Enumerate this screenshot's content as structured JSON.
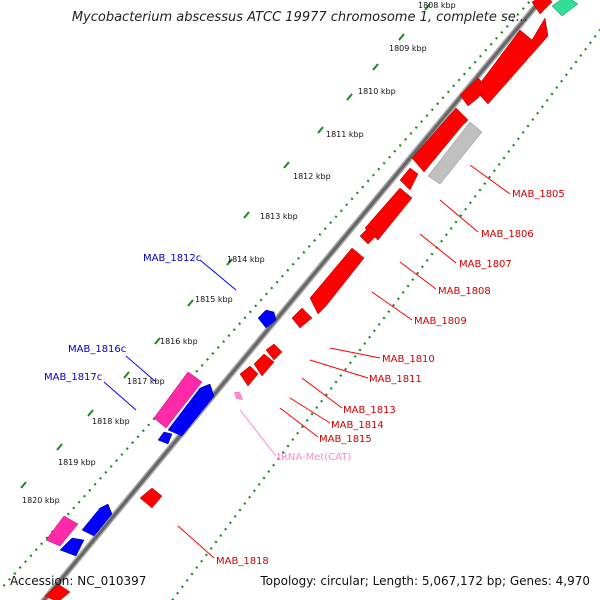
{
  "title": "Mycobacterium abscessus ATCC 19977 chromosome 1, complete se...",
  "footer": {
    "accession": "Accession: NC_010397",
    "summary": "Topology: circular; Length: 5,067,172 bp; Genes: 4,970"
  },
  "colors": {
    "forward_gene": "#ff0000",
    "reverse_gene": "#0000ff",
    "pseudogene": "#c0c0c0",
    "trna": "#ff88cc",
    "magenta_feature": "#ff2aa8",
    "teal_feature": "#33dd99",
    "tick_outer": "#1a8a1a",
    "backbone": "#808080"
  },
  "kbp_ticks": [
    "1808 kbp",
    "1809 kbp",
    "1810 kbp",
    "1811 kbp",
    "1812 kbp",
    "1813 kbp",
    "1814 kbp",
    "1815 kbp",
    "1816 kbp",
    "1817 kbp",
    "1818 kbp",
    "1819 kbp",
    "1820 kbp"
  ],
  "gene_labels": {
    "right": [
      "MAB_1805",
      "MAB_1806",
      "MAB_1807",
      "MAB_1808",
      "MAB_1809",
      "MAB_1810",
      "MAB_1811",
      "MAB_1813",
      "MAB_1814",
      "MAB_1815",
      "tRNA-Met(CAT)",
      "MAB_1818"
    ],
    "left": [
      "MAB_1812c",
      "MAB_1816c",
      "MAB_1817c"
    ]
  }
}
